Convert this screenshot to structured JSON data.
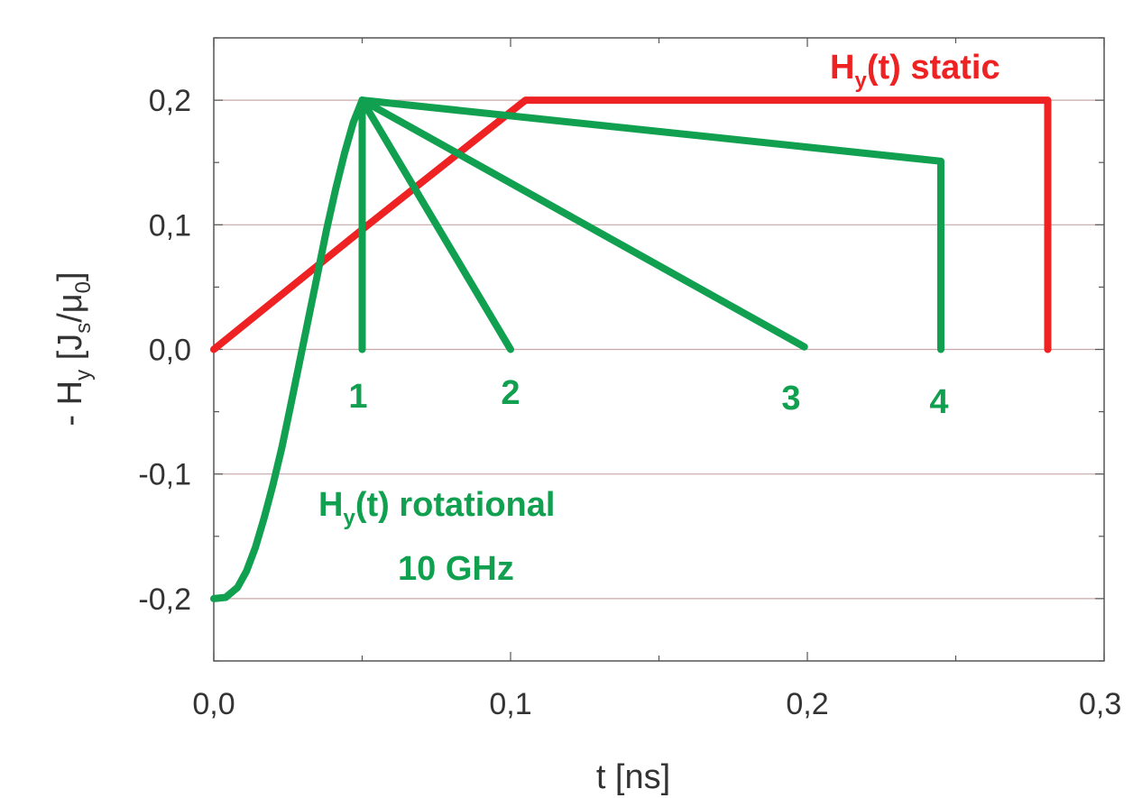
{
  "chart_data": {
    "type": "line",
    "xlabel": "t [ns]",
    "ylabel": {
      "prefix": "- H",
      "prefix_sub": "y",
      "bracket_open": " [J",
      "bracket_sub_s": "s",
      "slash_mu": "/μ",
      "mu_sub": "0",
      "bracket_close": "]"
    },
    "xlim": [
      0,
      0.3
    ],
    "ylim": [
      -0.25,
      0.25
    ],
    "x_ticks": [
      0,
      0.1,
      0.2,
      0.3
    ],
    "x_tick_labels": [
      "0,0",
      "0,1",
      "0,2",
      "0,3"
    ],
    "x_minor_ticks": [
      0.05,
      0.15,
      0.25
    ],
    "y_ticks": [
      -0.2,
      -0.1,
      0.0,
      0.1,
      0.2
    ],
    "y_tick_labels": [
      "-0,2",
      "-0,1",
      "0,0",
      "0,1",
      "0,2"
    ],
    "grid": "horizontal",
    "colors": {
      "static": "#ee2222",
      "rotational": "#10a050",
      "grid": "#c8a8a8",
      "axis": "#555555"
    },
    "series": [
      {
        "key": "static",
        "points": [
          [
            0,
            0
          ],
          [
            0.052,
            0.1
          ],
          [
            0.105,
            0.2
          ],
          [
            0.281,
            0.2
          ],
          [
            0.281,
            0
          ]
        ]
      },
      {
        "key": "rot-rise",
        "points": [
          [
            0,
            -0.2
          ],
          [
            0.004,
            -0.199
          ],
          [
            0.008,
            -0.191
          ],
          [
            0.011,
            -0.178
          ],
          [
            0.014,
            -0.159
          ],
          [
            0.017,
            -0.135
          ],
          [
            0.02,
            -0.108
          ],
          [
            0.023,
            -0.078
          ],
          [
            0.026,
            -0.044
          ],
          [
            0.029,
            -0.009
          ],
          [
            0.032,
            0.026
          ],
          [
            0.035,
            0.061
          ],
          [
            0.038,
            0.096
          ],
          [
            0.041,
            0.128
          ],
          [
            0.044,
            0.157
          ],
          [
            0.047,
            0.182
          ],
          [
            0.05,
            0.2
          ]
        ]
      },
      {
        "key": "rot-path-1",
        "points": [
          [
            0.05,
            0.2
          ],
          [
            0.05,
            0
          ]
        ]
      },
      {
        "key": "rot-path-2",
        "points": [
          [
            0.05,
            0.2
          ],
          [
            0.1,
            0
          ]
        ]
      },
      {
        "key": "rot-path-3",
        "points": [
          [
            0.05,
            0.2
          ],
          [
            0.199,
            0.002
          ]
        ]
      },
      {
        "key": "rot-path-4",
        "points": [
          [
            0.05,
            0.2
          ],
          [
            0.245,
            0.151
          ],
          [
            0.245,
            0
          ]
        ]
      }
    ],
    "annotations": {
      "static": {
        "main": "H",
        "sub": "y",
        "rest": "(t) static"
      },
      "rotational": {
        "main": "H",
        "sub": "y",
        "rest": "(t) rotational",
        "line2": "10 GHz"
      },
      "path_labels": [
        "1",
        "2",
        "3",
        "4"
      ]
    }
  }
}
